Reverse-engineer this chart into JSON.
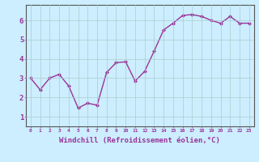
{
  "x": [
    0,
    1,
    2,
    3,
    4,
    5,
    6,
    7,
    8,
    9,
    10,
    11,
    12,
    13,
    14,
    15,
    16,
    17,
    18,
    19,
    20,
    21,
    22,
    23
  ],
  "y": [
    3.0,
    2.4,
    3.0,
    3.2,
    2.6,
    1.45,
    1.7,
    1.6,
    3.3,
    3.8,
    3.85,
    2.85,
    3.35,
    4.4,
    5.5,
    5.85,
    6.25,
    6.3,
    6.2,
    6.0,
    5.85,
    6.2,
    5.85,
    5.85
  ],
  "line_color": "#993399",
  "marker": "D",
  "marker_size": 2.0,
  "linewidth": 1.0,
  "xlabel": "Windchill (Refroidissement éolien,°C)",
  "xlabel_fontsize": 6.5,
  "background_color": "#cceeff",
  "grid_color": "#aacccc",
  "ylim": [
    0.5,
    6.8
  ],
  "xlim": [
    -0.5,
    23.5
  ],
  "yticks": [
    1,
    2,
    3,
    4,
    5,
    6
  ],
  "xticks": [
    0,
    1,
    2,
    3,
    4,
    5,
    6,
    7,
    8,
    9,
    10,
    11,
    12,
    13,
    14,
    15,
    16,
    17,
    18,
    19,
    20,
    21,
    22,
    23
  ]
}
